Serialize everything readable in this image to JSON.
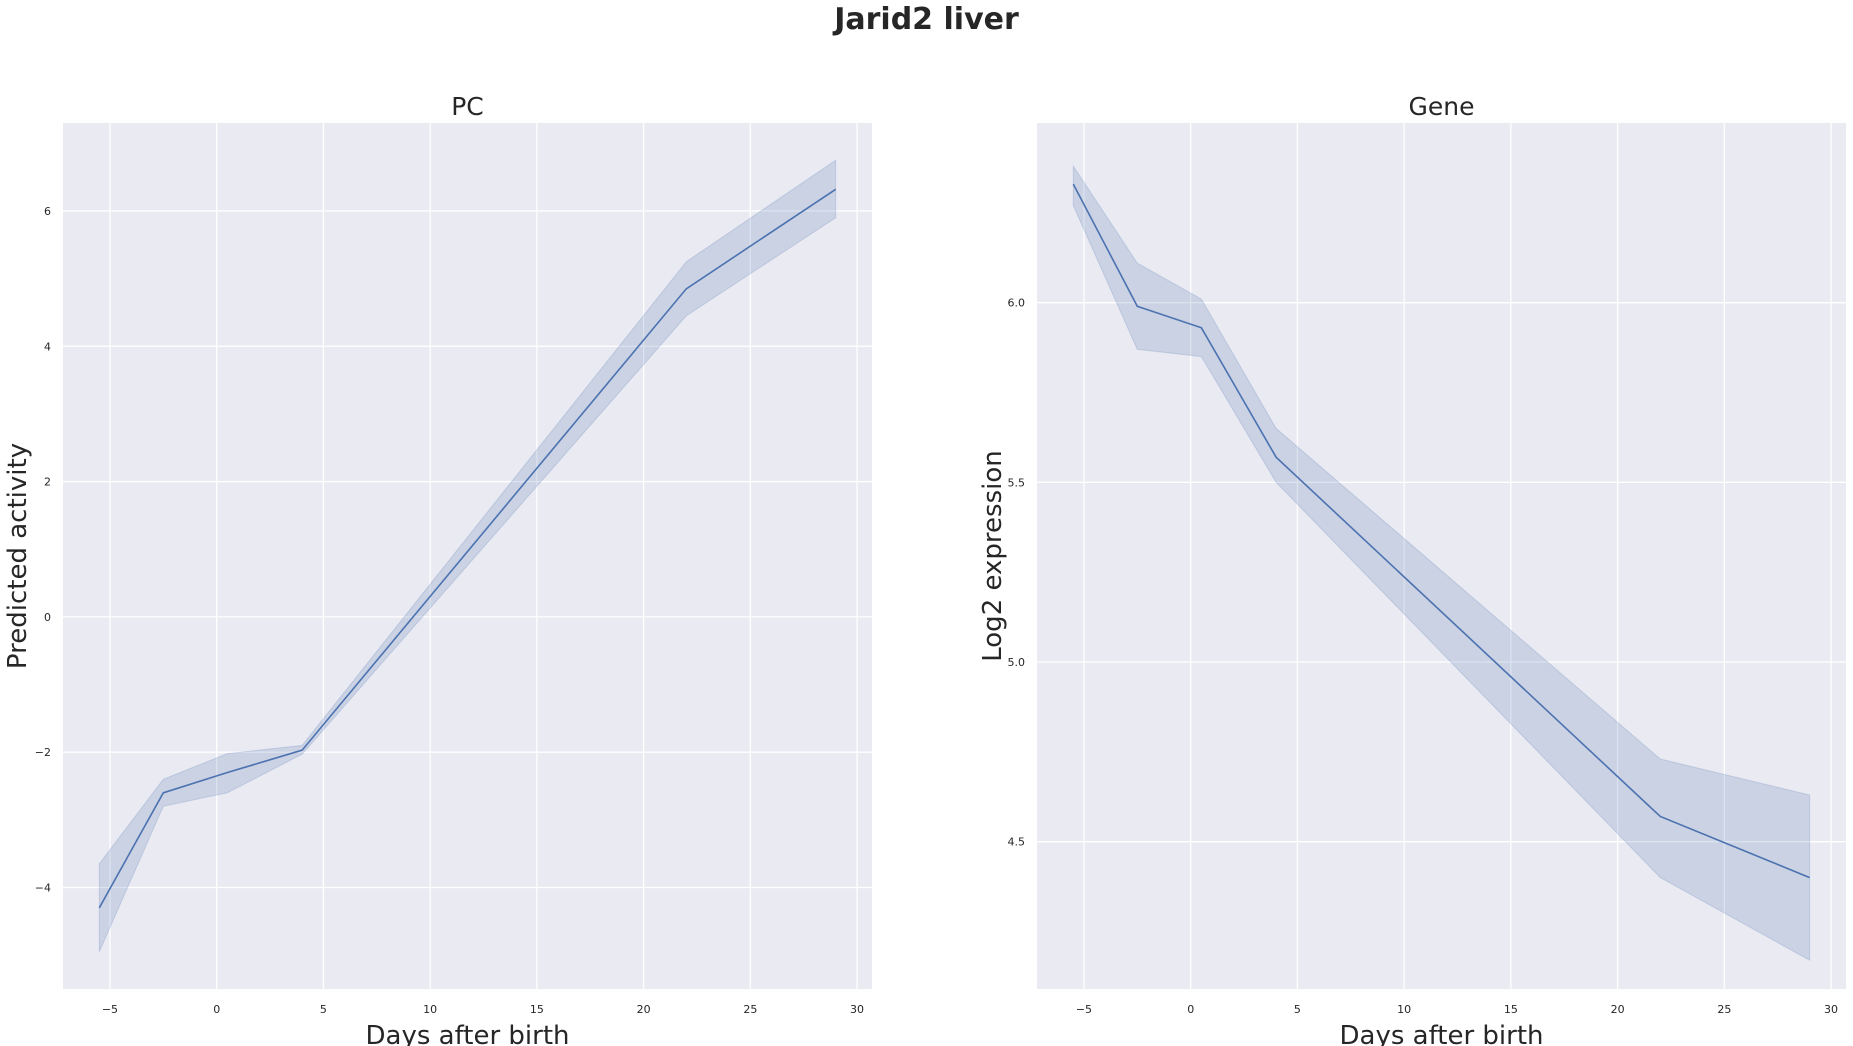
{
  "figure": {
    "title": "Jarid2 liver"
  },
  "colors": {
    "axes_bg": "#eaeaf2",
    "grid": "#ffffff",
    "line": "#4c72b0",
    "band": "#4c72b0",
    "text": "#262626"
  },
  "chart_data": [
    {
      "type": "line",
      "title": "PC",
      "xlabel": "Days after birth",
      "ylabel": "Predicted activity",
      "xlim": [
        -7.2,
        30.7
      ],
      "ylim": [
        -5.5,
        7.3
      ],
      "xticks": [
        -5,
        0,
        5,
        10,
        15,
        20,
        25,
        30
      ],
      "xtick_labels": [
        "−5",
        "0",
        "5",
        "10",
        "15",
        "20",
        "25",
        "30"
      ],
      "yticks": [
        -4,
        -2,
        0,
        2,
        4,
        6
      ],
      "ytick_labels": [
        "−4",
        "−2",
        "0",
        "2",
        "4",
        "6"
      ],
      "grid": true,
      "series": [
        {
          "x": [
            -5.5,
            -2.5,
            0.5,
            4,
            22,
            29
          ],
          "y": [
            -4.3,
            -2.6,
            -2.3,
            -1.97,
            4.85,
            6.32
          ],
          "ci_lower": [
            -4.95,
            -2.8,
            -2.6,
            -2.03,
            4.45,
            5.9
          ],
          "ci_upper": [
            -3.65,
            -2.4,
            -2.02,
            -1.9,
            5.25,
            6.75
          ]
        }
      ]
    },
    {
      "type": "line",
      "title": "Gene",
      "xlabel": "Days after birth",
      "ylabel": "Log2 expression",
      "xlim": [
        -7.2,
        30.7
      ],
      "ylim": [
        4.09,
        6.5
      ],
      "xticks": [
        -5,
        0,
        5,
        10,
        15,
        20,
        25,
        30
      ],
      "xtick_labels": [
        "−5",
        "0",
        "5",
        "10",
        "15",
        "20",
        "25",
        "30"
      ],
      "yticks": [
        4.5,
        5.0,
        5.5,
        6.0
      ],
      "ytick_labels": [
        "4.5",
        "5.0",
        "5.5",
        "6.0"
      ],
      "grid": true,
      "series": [
        {
          "x": [
            -5.5,
            -2.5,
            0.5,
            4,
            22,
            29
          ],
          "y": [
            6.33,
            5.99,
            5.93,
            5.57,
            4.57,
            4.4
          ],
          "ci_lower": [
            6.27,
            5.87,
            5.85,
            5.5,
            4.4,
            4.17
          ],
          "ci_upper": [
            6.38,
            6.11,
            6.01,
            5.65,
            4.73,
            4.63
          ]
        }
      ]
    }
  ]
}
